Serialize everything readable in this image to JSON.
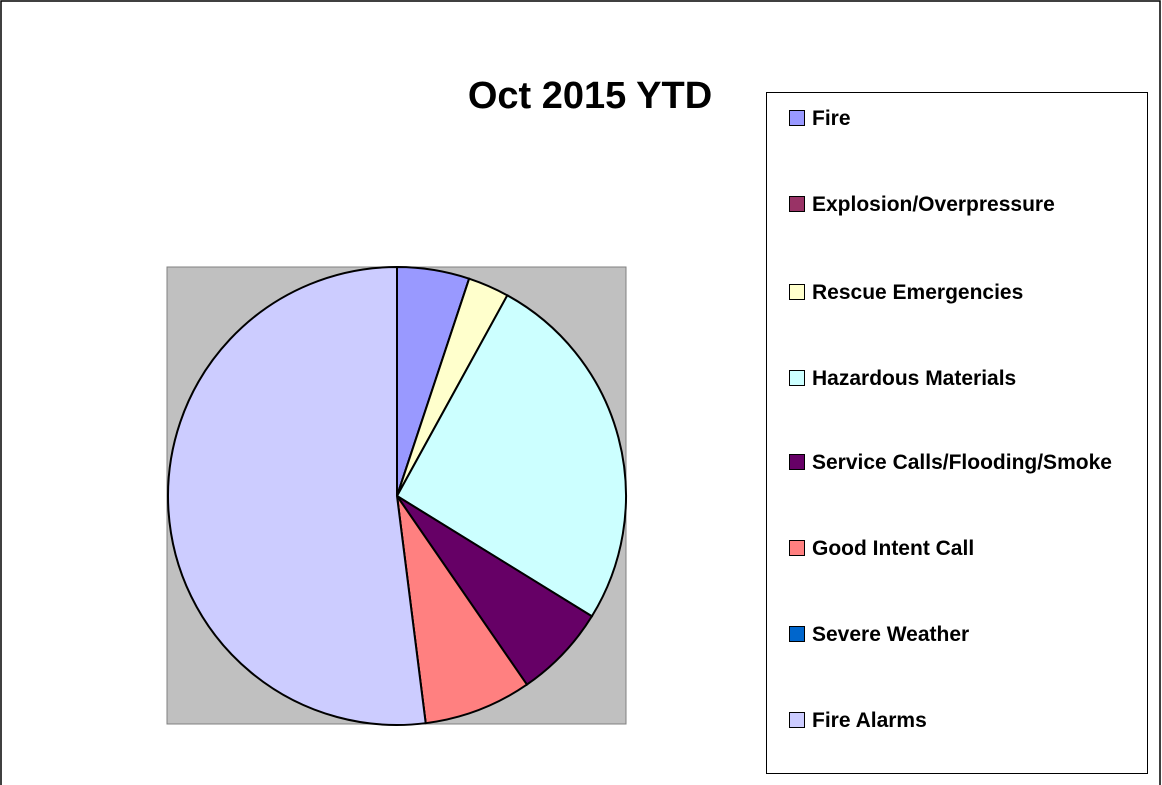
{
  "chart_data": {
    "type": "pie",
    "title": "Oct 2015 YTD",
    "categories": [
      "Fire",
      "Explosion/Overpressure",
      "Rescue Emergencies",
      "Hazardous Materials",
      "Service Calls/Flooding/Smoke",
      "Good Intent Call",
      "Severe Weather",
      "Fire Alarms"
    ],
    "values": [
      5.1,
      0,
      2.9,
      25.8,
      6.6,
      7.6,
      0,
      52
    ],
    "colors": [
      "#9999ff",
      "#993366",
      "#ffffcc",
      "#ccffff",
      "#660066",
      "#ff8080",
      "#0066cc",
      "#ccccff"
    ],
    "legend": "right"
  }
}
